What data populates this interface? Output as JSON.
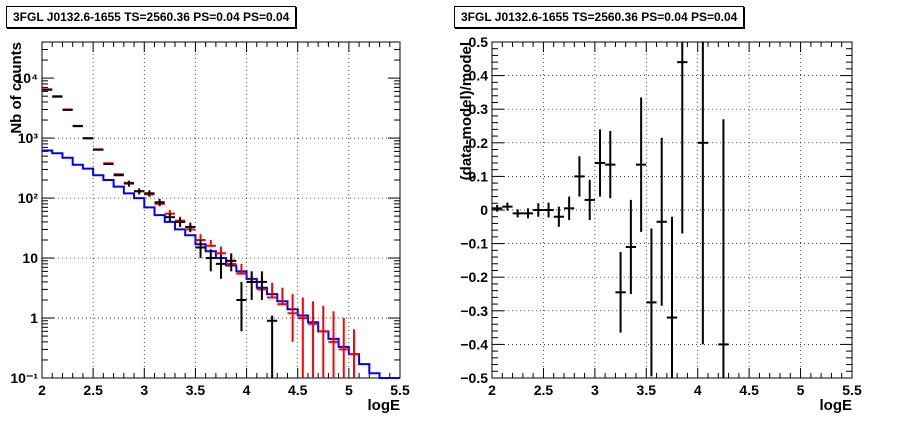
{
  "chart_data": [
    {
      "type": "line",
      "title": "3FGL J0132.6-1655 TS=2560.36 PS=0.04 PS=0.04",
      "xlabel": "logE",
      "ylabel": "Nb of counts",
      "xlim": [
        2,
        5.5
      ],
      "ylim": [
        0.1,
        40000
      ],
      "yscale": "log",
      "grid": true,
      "x_ticks": [
        "2",
        "2.5",
        "3",
        "3.5",
        "4",
        "4.5",
        "5",
        "5.5"
      ],
      "y_ticks": [
        "10⁻¹",
        "1",
        "10",
        "10²",
        "10³",
        "10⁴"
      ],
      "bin_edges": [
        2.0,
        2.1,
        2.2,
        2.3,
        2.4,
        2.5,
        2.6,
        2.7,
        2.8,
        2.9,
        3.0,
        3.1,
        3.2,
        3.3,
        3.4,
        3.5,
        3.6,
        3.7,
        3.8,
        3.9,
        4.0,
        4.1,
        4.2,
        4.3,
        4.4,
        4.5,
        4.6,
        4.7,
        4.8,
        4.9,
        5.0,
        5.1,
        5.2,
        5.3,
        5.4,
        5.5
      ],
      "series": [
        {
          "name": "",
          "color": "#0000ff",
          "values": [
            620,
            560,
            470,
            360,
            310,
            240,
            200,
            155,
            120,
            100,
            70,
            52,
            40,
            30,
            24,
            17,
            13,
            10,
            7.5,
            6,
            4.5,
            3.2,
            2.5,
            1.9,
            1.4,
            1.1,
            0.85,
            0.6,
            0.45,
            0.33,
            0.25,
            0.17,
            0.12,
            0.1,
            0.1
          ]
        },
        {
          "name": "",
          "color": "#ff0000",
          "x": [
            2.05,
            2.15,
            2.25,
            2.35,
            2.45,
            2.55,
            2.65,
            2.75,
            2.85,
            2.95,
            3.05,
            3.15,
            3.25,
            3.35,
            3.45,
            3.55,
            3.65,
            3.75,
            3.85,
            3.95,
            4.05,
            4.15,
            4.25,
            4.35,
            4.45,
            4.55,
            4.65,
            4.75,
            4.85,
            4.95,
            5.05
          ],
          "values": [
            6500,
            5000,
            3000,
            1600,
            1000,
            650,
            380,
            250,
            180,
            130,
            115,
            80,
            55,
            42,
            30,
            20,
            16,
            12,
            8,
            5.5,
            4,
            3,
            2.2,
            1.7,
            1.2,
            1,
            0.8,
            0.6,
            0.4,
            0.3,
            0.25
          ],
          "err_low": [
            0,
            0,
            0,
            0,
            0,
            0,
            0,
            0,
            0,
            0,
            0,
            0,
            0,
            0,
            0,
            0,
            0,
            0,
            0,
            0,
            0,
            0,
            0,
            0,
            0.8,
            0.9,
            0.7,
            0.55,
            0.38,
            0.28,
            0.24
          ],
          "err_high": [
            0,
            0,
            0,
            0,
            0,
            0,
            0,
            0,
            0,
            0,
            0,
            0,
            8,
            7,
            6,
            5,
            4,
            3.5,
            3,
            2.5,
            2,
            1.8,
            1.7,
            1.5,
            1.3,
            1.2,
            1.1,
            1.0,
            0.9,
            0.7,
            0.4
          ]
        },
        {
          "name": "",
          "color": "#000000",
          "x": [
            2.05,
            2.15,
            2.25,
            2.35,
            2.45,
            2.55,
            2.65,
            2.75,
            2.85,
            2.95,
            3.05,
            3.15,
            3.25,
            3.35,
            3.45,
            3.55,
            3.65,
            3.75,
            3.85,
            3.95,
            4.05,
            4.15,
            4.25
          ],
          "values": [
            6400,
            4900,
            2950,
            1580,
            990,
            640,
            370,
            240,
            175,
            130,
            120,
            85,
            48,
            40,
            33,
            15,
            10,
            8,
            9,
            2,
            4,
            4,
            0.9
          ],
          "err_low": [
            0,
            0,
            0,
            0,
            0,
            0,
            0,
            0,
            20,
            15,
            15,
            12,
            8,
            7,
            6,
            5,
            4,
            3.5,
            3,
            1.4,
            2,
            2,
            0.85
          ],
          "err_high": [
            0,
            0,
            0,
            0,
            0,
            0,
            0,
            0,
            20,
            15,
            15,
            12,
            8,
            7,
            6,
            5,
            4,
            3.5,
            3,
            2,
            2,
            2,
            0.2
          ]
        }
      ]
    },
    {
      "type": "scatter",
      "title": "3FGL J0132.6-1655 TS=2560.36 PS=0.04 PS=0.04",
      "xlabel": "logE",
      "ylabel": "(data-model)/model",
      "xlim": [
        2,
        5.5
      ],
      "ylim": [
        -0.5,
        0.5
      ],
      "grid": true,
      "x_ticks": [
        "2",
        "2.5",
        "3",
        "3.5",
        "4",
        "4.5",
        "5",
        "5.5"
      ],
      "y_ticks": [
        "−0.5",
        "−0.4",
        "−0.3",
        "−0.2",
        "−0.1",
        "0",
        "0.1",
        "0.2",
        "0.3",
        "0.4",
        "0.5"
      ],
      "series": [
        {
          "name": "",
          "color": "#000000",
          "x": [
            2.05,
            2.15,
            2.25,
            2.35,
            2.45,
            2.55,
            2.65,
            2.75,
            2.85,
            2.95,
            3.05,
            3.15,
            3.25,
            3.35,
            3.45,
            3.55,
            3.65,
            3.75,
            3.85,
            4.05,
            4.25
          ],
          "values": [
            0.005,
            0.01,
            -0.01,
            -0.01,
            0.0,
            0.0,
            -0.02,
            0.005,
            0.1,
            0.03,
            0.14,
            0.135,
            -0.245,
            -0.11,
            0.135,
            -0.275,
            -0.035,
            -0.32,
            0.44,
            0.2,
            -0.4
          ],
          "err": [
            0.01,
            0.012,
            0.012,
            0.015,
            0.02,
            0.022,
            0.03,
            0.035,
            0.06,
            0.06,
            0.1,
            0.1,
            0.12,
            0.14,
            0.2,
            0.22,
            0.25,
            0.3,
            0.51,
            0.6,
            0.67
          ]
        }
      ]
    }
  ]
}
